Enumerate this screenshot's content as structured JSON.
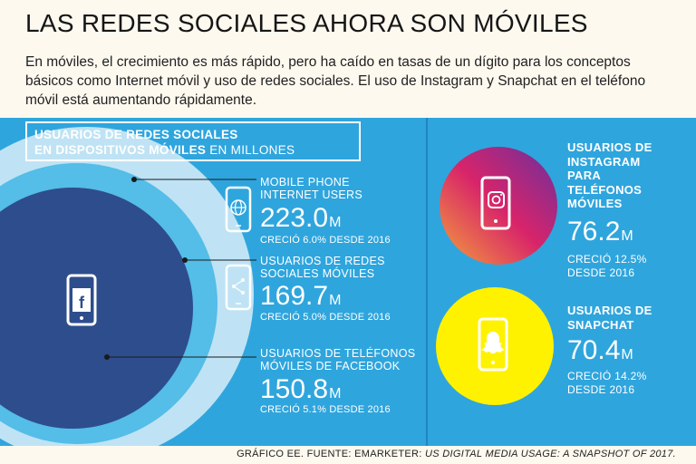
{
  "title": "LAS REDES SOCIALES AHORA SON MÓVILES",
  "subtitle": "En móviles, el crecimiento es más rápido, pero ha caído en tasas de un dígito para los conceptos básicos como Internet móvil y uso de redes sociales. El uso de Instagram y Snapchat en el teléfono móvil está aumentando rápidamente.",
  "panel_header": {
    "line1": "USUARIOS DE REDES SOCIALES",
    "line2_bold": "EN DISPOSITIVOS MÓVILES",
    "line2_rest": " EN MILLONES"
  },
  "stats": [
    {
      "label": "MOBILE PHONE\nINTERNET USERS",
      "value": "223.0",
      "unit": "M",
      "growth": "CRECIÓ 6.0% DESDE 2016",
      "icon": "globe-phone-icon"
    },
    {
      "label": "USUARIOS DE REDES\nSOCIALES MÓVILES",
      "value": "169.7",
      "unit": "M",
      "growth": "CRECIÓ 5.0% DESDE 2016",
      "icon": "share-phone-icon"
    },
    {
      "label": "USUARIOS DE TELÉFONOS\nMÓVILES DE FACEBOOK",
      "value": "150.8",
      "unit": "M",
      "growth": "CRECIÓ 5.1% DESDE 2016",
      "icon": "facebook-phone-icon"
    }
  ],
  "instagram": {
    "label": "USUARIOS DE INSTAGRAM PARA TELÉFONOS MÓVILES",
    "value": "76.2",
    "unit": "M",
    "growth": "CRECIÓ 12.5% DESDE 2016",
    "icon": "instagram-phone-icon"
  },
  "snapchat": {
    "label": "USUARIOS DE SNAPCHAT",
    "value": "70.4",
    "unit": "M",
    "growth": "CRECIÓ 14.2% DESDE 2016",
    "icon": "snapchat-phone-icon"
  },
  "source": {
    "prefix": "GRÁFICO EE. FUENTE: EMARKETER: ",
    "italic": "US DIGITAL MEDIA USAGE: A SNAPSHOT OF 2017."
  },
  "colors": {
    "background": "#fdf9ef",
    "panel": "#2fa5dd",
    "outer_circle": "#bfe3f4",
    "mid_circle": "#54bde8",
    "inner_circle": "#2e4d8c",
    "instagram_gradient_start": "#f4a23a",
    "instagram_gradient_mid": "#d8246a",
    "instagram_gradient_end": "#6a2f9e",
    "snapchat": "#fff200"
  }
}
